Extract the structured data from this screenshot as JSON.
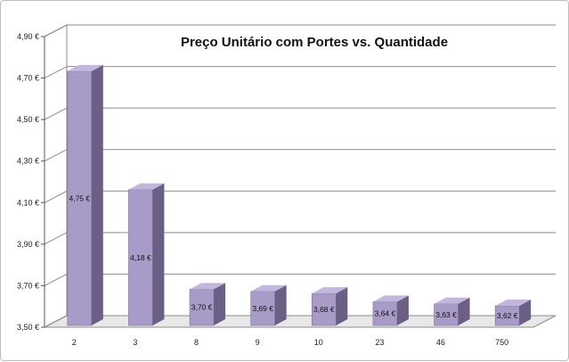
{
  "chart_data": {
    "type": "bar",
    "title": "Preço Unitário com Portes vs. Quantidade",
    "xlabel": "",
    "ylabel": "",
    "categories": [
      "2",
      "3",
      "8",
      "9",
      "10",
      "23",
      "46",
      "750"
    ],
    "values": [
      4.75,
      4.18,
      3.7,
      3.69,
      3.68,
      3.64,
      3.63,
      3.62
    ],
    "value_labels": [
      "4,75 €",
      "4,18 €",
      "3,70 €",
      "3,69 €",
      "3,68 €",
      "3,64 €",
      "3,63 €",
      "3,62 €"
    ],
    "ylim": [
      3.5,
      4.9
    ],
    "yticks": [
      3.5,
      3.7,
      3.9,
      4.1,
      4.3,
      4.5,
      4.7,
      4.9
    ],
    "ytick_labels": [
      "3,50 €",
      "3,70 €",
      "3,90 €",
      "4,10 €",
      "4,30 €",
      "4,50 €",
      "4,70 €",
      "4,90 €"
    ],
    "grid": true,
    "legend": "none",
    "style": "3d-column",
    "colors": {
      "bar_front": "#a99bc8",
      "bar_side": "#6c5f86",
      "bar_top": "#c2b6de",
      "grid": "#8c8c8c",
      "floor": "#e8e8e8"
    }
  }
}
